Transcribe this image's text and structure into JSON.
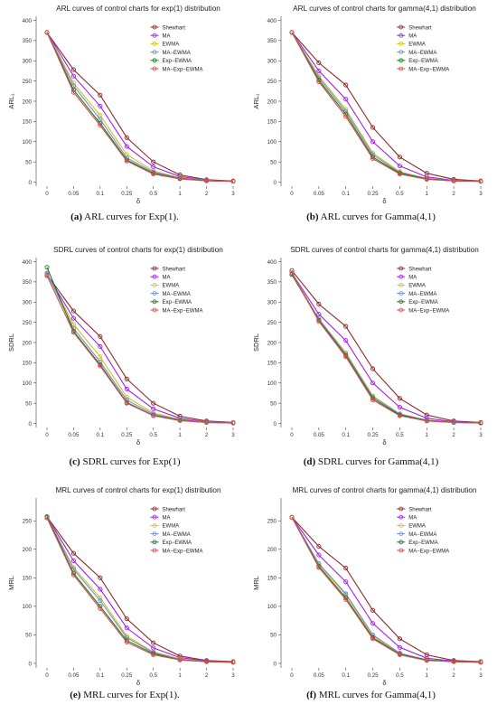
{
  "figure": {
    "captions": [
      {
        "label": "(a)",
        "text": " ARL curves for Exp(1)."
      },
      {
        "label": "(b)",
        "text": " ARL curves for Gamma(4,1)"
      },
      {
        "label": "(c)",
        "text": " SDRL curves for Exp(1)"
      },
      {
        "label": "(d)",
        "text": " SDRL curves for Gamma(4,1)"
      },
      {
        "label": "(e)",
        "text": " MRL curves for Exp(1)."
      },
      {
        "label": "(f)",
        "text": " MRL curves for Gamma(4,1)"
      }
    ]
  },
  "series_styles": [
    {
      "name": "Shewhart",
      "color": "#8b2a2a"
    },
    {
      "name": "MA",
      "color": "#a020f0"
    },
    {
      "name": "EWMA",
      "color": "#d6c21e"
    },
    {
      "name": "MA−EWMA",
      "color": "#6e8fd8"
    },
    {
      "name": "Exp−EWMA",
      "color": "#1f7a1f"
    },
    {
      "name": "MA−Exp−EWMA",
      "color": "#d94c4c"
    }
  ],
  "chart_data": [
    {
      "type": "line",
      "title": "ARL curves of control charts for exp(1) distribution",
      "xlabel": "δ",
      "ylabel": "ARL₁",
      "categories": [
        "0",
        "0.05",
        "0.1",
        "0.25",
        "0.5",
        "1",
        "2",
        "3"
      ],
      "ylim": [
        -10,
        410
      ],
      "yticks": [
        0,
        50,
        100,
        150,
        200,
        250,
        300,
        350,
        400
      ],
      "legend": "top-right",
      "grid": false,
      "series": [
        {
          "name": "Shewhart",
          "values": [
            370,
            278,
            215,
            110,
            50,
            18,
            6,
            3
          ]
        },
        {
          "name": "MA",
          "values": [
            370,
            262,
            188,
            88,
            38,
            14,
            5,
            2.5
          ]
        },
        {
          "name": "EWMA",
          "values": [
            370,
            245,
            165,
            68,
            28,
            11,
            4,
            2
          ]
        },
        {
          "name": "MA−EWMA",
          "values": [
            370,
            238,
            155,
            60,
            25,
            10,
            4,
            2
          ]
        },
        {
          "name": "Exp−EWMA",
          "values": [
            370,
            228,
            145,
            55,
            22,
            9,
            3.5,
            2
          ]
        },
        {
          "name": "MA−Exp−EWMA",
          "values": [
            370,
            222,
            140,
            52,
            20,
            8,
            3,
            2
          ]
        }
      ]
    },
    {
      "type": "line",
      "title": "ARL curves of control charts for gamma(4,1) distribution",
      "xlabel": "δ",
      "ylabel": "ARL₁",
      "categories": [
        "0",
        "0.05",
        "0.1",
        "0.25",
        "0.5",
        "1",
        "2",
        "3"
      ],
      "ylim": [
        -10,
        410
      ],
      "yticks": [
        0,
        50,
        100,
        150,
        200,
        250,
        300,
        350,
        400
      ],
      "legend": "top-right",
      "grid": false,
      "series": [
        {
          "name": "Shewhart",
          "values": [
            370,
            295,
            240,
            135,
            62,
            22,
            7,
            3
          ]
        },
        {
          "name": "MA",
          "values": [
            370,
            275,
            205,
            100,
            40,
            13,
            4,
            2
          ]
        },
        {
          "name": "EWMA",
          "values": [
            370,
            262,
            180,
            72,
            26,
            9,
            3,
            2
          ]
        },
        {
          "name": "MA−EWMA",
          "values": [
            370,
            258,
            175,
            68,
            24,
            9,
            3,
            2
          ]
        },
        {
          "name": "Exp−EWMA",
          "values": [
            370,
            252,
            168,
            62,
            22,
            8,
            3,
            2
          ]
        },
        {
          "name": "MA−Exp−EWMA",
          "values": [
            370,
            248,
            162,
            58,
            20,
            7,
            3,
            2
          ]
        }
      ]
    },
    {
      "type": "line",
      "title": "SDRL curves of control charts for exp(1) distribution",
      "xlabel": "δ",
      "ylabel": "SDRL",
      "categories": [
        "0",
        "0.05",
        "0.1",
        "0.25",
        "0.5",
        "1",
        "2",
        "3"
      ],
      "ylim": [
        -10,
        410
      ],
      "yticks": [
        0,
        50,
        100,
        150,
        200,
        250,
        300,
        350,
        400
      ],
      "legend": "top-right",
      "grid": false,
      "series": [
        {
          "name": "Shewhart",
          "values": [
            368,
            278,
            215,
            110,
            50,
            18,
            6,
            2.5
          ]
        },
        {
          "name": "MA",
          "values": [
            368,
            260,
            190,
            85,
            36,
            13,
            4,
            2
          ]
        },
        {
          "name": "EWMA",
          "values": [
            370,
            245,
            165,
            65,
            26,
            10,
            3.5,
            1.5
          ]
        },
        {
          "name": "MA−EWMA",
          "values": [
            372,
            235,
            152,
            58,
            23,
            9,
            3,
            1.5
          ]
        },
        {
          "name": "Exp−EWMA",
          "values": [
            386,
            228,
            145,
            52,
            20,
            8,
            2.5,
            1
          ]
        },
        {
          "name": "MA−Exp−EWMA",
          "values": [
            365,
            225,
            142,
            50,
            19,
            7,
            2.5,
            1
          ]
        }
      ]
    },
    {
      "type": "line",
      "title": "SDRL curves of control charts for gamma(4,1) distribution",
      "xlabel": "δ",
      "ylabel": "SDRL",
      "categories": [
        "0",
        "0.05",
        "0.1",
        "0.25",
        "0.5",
        "1",
        "2",
        "3"
      ],
      "ylim": [
        -10,
        410
      ],
      "yticks": [
        0,
        50,
        100,
        150,
        200,
        250,
        300,
        350,
        400
      ],
      "legend": "top-right",
      "grid": false,
      "series": [
        {
          "name": "Shewhart",
          "values": [
            378,
            295,
            240,
            135,
            62,
            21,
            6,
            2.5
          ]
        },
        {
          "name": "MA",
          "values": [
            372,
            270,
            205,
            100,
            40,
            13,
            4,
            1.5
          ]
        },
        {
          "name": "EWMA",
          "values": [
            372,
            258,
            175,
            68,
            24,
            8,
            3,
            1
          ]
        },
        {
          "name": "MA−EWMA",
          "values": [
            370,
            258,
            172,
            66,
            23,
            8,
            3,
            1
          ]
        },
        {
          "name": "Exp−EWMA",
          "values": [
            368,
            255,
            168,
            62,
            21,
            7,
            2.5,
            1
          ]
        },
        {
          "name": "MA−Exp−EWMA",
          "values": [
            372,
            252,
            165,
            58,
            19,
            6,
            2.5,
            1
          ]
        }
      ]
    },
    {
      "type": "line",
      "title": "MRL curves of control charts for exp(1) distribution",
      "xlabel": "δ",
      "ylabel": "MRL",
      "categories": [
        "0",
        "0.05",
        "0.1",
        "0.25",
        "0.5",
        "1",
        "2",
        "3"
      ],
      "ylim": [
        -8,
        290
      ],
      "yticks": [
        0,
        50,
        100,
        150,
        200,
        250
      ],
      "legend": "top-right",
      "grid": false,
      "series": [
        {
          "name": "Shewhart",
          "values": [
            257,
            193,
            150,
            78,
            36,
            13,
            5,
            3
          ]
        },
        {
          "name": "MA",
          "values": [
            257,
            180,
            130,
            62,
            27,
            10,
            4,
            2
          ]
        },
        {
          "name": "EWMA",
          "values": [
            257,
            168,
            115,
            48,
            20,
            8,
            3,
            2
          ]
        },
        {
          "name": "MA−EWMA",
          "values": [
            257,
            165,
            110,
            45,
            19,
            7,
            3,
            2
          ]
        },
        {
          "name": "Exp−EWMA",
          "values": [
            257,
            158,
            100,
            40,
            17,
            6,
            3,
            2
          ]
        },
        {
          "name": "MA−Exp−EWMA",
          "values": [
            255,
            155,
            96,
            37,
            15,
            6,
            3,
            2
          ]
        }
      ]
    },
    {
      "type": "line",
      "title": "MRL curves of control charts for gamma(4,1) distribution",
      "xlabel": "δ",
      "ylabel": "MRL",
      "categories": [
        "0",
        "0.05",
        "0.1",
        "0.25",
        "0.5",
        "1",
        "2",
        "3"
      ],
      "ylim": [
        -8,
        290
      ],
      "yticks": [
        0,
        50,
        100,
        150,
        200,
        250
      ],
      "legend": "top-right",
      "grid": false,
      "series": [
        {
          "name": "Shewhart",
          "values": [
            256,
            205,
            167,
            93,
            43,
            15,
            5,
            3
          ]
        },
        {
          "name": "MA",
          "values": [
            256,
            190,
            143,
            70,
            28,
            9,
            4,
            2
          ]
        },
        {
          "name": "EWMA",
          "values": [
            256,
            173,
            120,
            48,
            17,
            6,
            3,
            2
          ]
        },
        {
          "name": "MA−EWMA",
          "values": [
            256,
            175,
            122,
            50,
            18,
            6,
            3,
            2
          ]
        },
        {
          "name": "Exp−EWMA",
          "values": [
            256,
            170,
            115,
            45,
            16,
            6,
            3,
            2
          ]
        },
        {
          "name": "MA−Exp−EWMA",
          "values": [
            256,
            168,
            112,
            43,
            15,
            5,
            3,
            2
          ]
        }
      ]
    }
  ]
}
